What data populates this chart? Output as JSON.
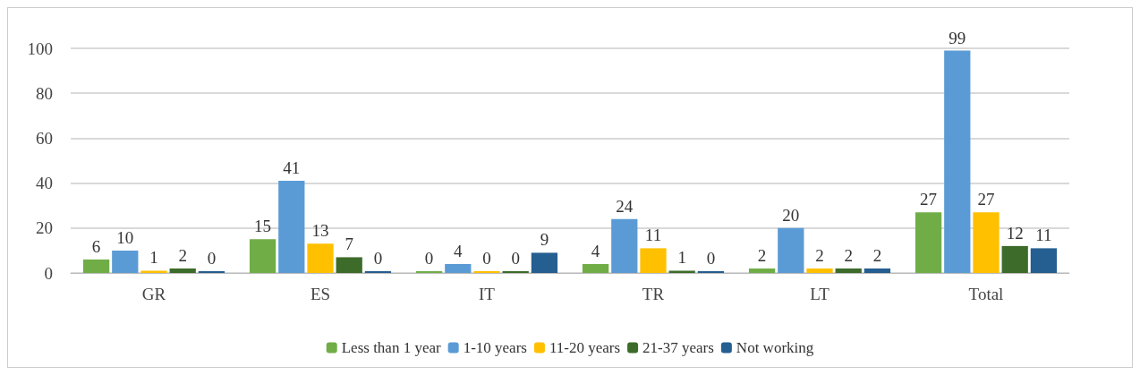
{
  "chart_data": {
    "type": "bar",
    "categories": [
      "GR",
      "ES",
      "IT",
      "TR",
      "LT",
      "Total"
    ],
    "series": [
      {
        "name": "Less than 1 year",
        "color": "#70ad47",
        "values": [
          6,
          15,
          0,
          4,
          2,
          27
        ]
      },
      {
        "name": "1-10 years",
        "color": "#5b9bd5",
        "values": [
          10,
          41,
          4,
          24,
          20,
          99
        ]
      },
      {
        "name": "11-20 years",
        "color": "#ffc000",
        "values": [
          1,
          13,
          0,
          11,
          2,
          27
        ]
      },
      {
        "name": "21-37 years",
        "color": "#3d6b2a",
        "values": [
          2,
          7,
          0,
          1,
          2,
          12
        ]
      },
      {
        "name": "Not working",
        "color": "#255e91",
        "values": [
          0,
          0,
          9,
          0,
          2,
          11
        ]
      }
    ],
    "ylim": [
      0,
      100
    ],
    "yticks": [
      0,
      20,
      40,
      60,
      80,
      100
    ],
    "grid": "y",
    "legend": "bottom",
    "data_labels": true
  }
}
